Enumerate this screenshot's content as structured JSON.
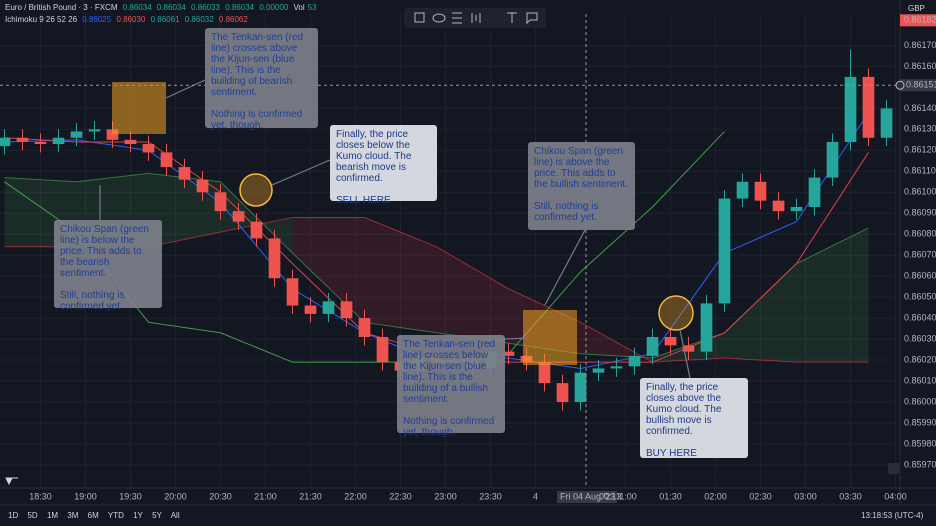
{
  "header": {
    "symbol": "Euro / British Pound · 3 · FXCM",
    "ohlc": [
      "0.86034",
      "0.86034",
      "0.86033",
      "0.86034",
      "0.00000"
    ],
    "vol_label": "Vol",
    "vol": "53",
    "indicator": "Ichimoku 9 26 52 26",
    "indicator_values": [
      "0.86025",
      "0.86030",
      "0.86061",
      "0.86032",
      "0.86062"
    ],
    "currency": "GBP",
    "ranges": [
      "1D",
      "5D",
      "1M",
      "3M",
      "6M",
      "YTD",
      "1Y",
      "5Y",
      "All"
    ],
    "clock": "13:18:53 (UTC-4)"
  },
  "chart_data": {
    "type": "candlestick",
    "x": [
      18.1,
      18.3,
      18.5,
      18.7,
      18.9,
      19.1,
      19.3,
      19.5,
      19.7,
      19.9,
      20.1,
      20.3,
      20.5,
      20.7,
      20.9,
      21.1,
      21.3,
      21.5,
      21.7,
      21.9,
      22.1,
      22.3,
      22.5,
      22.7,
      22.9,
      23.1,
      23.3,
      23.5,
      23.7,
      23.9,
      24.1,
      24.3,
      24.5,
      24.7,
      24.9,
      25.1,
      25.3,
      25.5,
      25.7,
      25.9,
      26.1,
      26.3,
      26.5,
      26.7,
      26.9,
      27.1,
      27.3,
      27.5,
      27.7,
      27.9
    ],
    "open": [
      0.86122,
      0.86126,
      0.86124,
      0.86123,
      0.86126,
      0.86129,
      0.8613,
      0.86125,
      0.86123,
      0.86119,
      0.86112,
      0.86106,
      0.861,
      0.86091,
      0.86086,
      0.86078,
      0.86059,
      0.86046,
      0.86042,
      0.86048,
      0.8604,
      0.86031,
      0.86019,
      0.86015,
      0.86021,
      0.86019,
      0.8602,
      0.86016,
      0.86024,
      0.86022,
      0.86019,
      0.86009,
      0.86,
      0.86014,
      0.86016,
      0.86017,
      0.86022,
      0.86031,
      0.86027,
      0.86024,
      0.86047,
      0.86097,
      0.86105,
      0.86096,
      0.86091,
      0.86093,
      0.86107,
      0.86124,
      0.86155,
      0.86126
    ],
    "high": [
      0.8613,
      0.8613,
      0.86128,
      0.8613,
      0.86133,
      0.86134,
      0.86134,
      0.86129,
      0.86127,
      0.86123,
      0.86116,
      0.8611,
      0.86104,
      0.86095,
      0.8609,
      0.86082,
      0.86063,
      0.8605,
      0.86052,
      0.86052,
      0.86044,
      0.86035,
      0.86023,
      0.86025,
      0.86025,
      0.86024,
      0.86024,
      0.86028,
      0.86028,
      0.86026,
      0.86023,
      0.86013,
      0.86018,
      0.8602,
      0.86021,
      0.86026,
      0.86035,
      0.86035,
      0.86031,
      0.86051,
      0.86101,
      0.86109,
      0.86109,
      0.861,
      0.86097,
      0.86111,
      0.86128,
      0.86168,
      0.86159,
      0.86144
    ],
    "low": [
      0.86118,
      0.8612,
      0.86119,
      0.86119,
      0.86122,
      0.86125,
      0.86121,
      0.86119,
      0.86115,
      0.86108,
      0.86102,
      0.86096,
      0.86087,
      0.86082,
      0.86074,
      0.86055,
      0.86042,
      0.86038,
      0.86038,
      0.86036,
      0.86027,
      0.86015,
      0.86011,
      0.86011,
      0.86015,
      0.86015,
      0.86012,
      0.86012,
      0.86018,
      0.86015,
      0.86005,
      0.85996,
      0.85996,
      0.8601,
      0.86012,
      0.86013,
      0.86018,
      0.86023,
      0.8602,
      0.8602,
      0.86043,
      0.86093,
      0.86092,
      0.86087,
      0.86087,
      0.86089,
      0.86103,
      0.8612,
      0.86122,
      0.86122
    ],
    "close": [
      0.86126,
      0.86124,
      0.86123,
      0.86126,
      0.86129,
      0.8613,
      0.86125,
      0.86123,
      0.86119,
      0.86112,
      0.86106,
      0.861,
      0.86091,
      0.86086,
      0.86078,
      0.86059,
      0.86046,
      0.86042,
      0.86048,
      0.8604,
      0.86031,
      0.86019,
      0.86015,
      0.86021,
      0.86019,
      0.8602,
      0.86016,
      0.86024,
      0.86022,
      0.86019,
      0.86009,
      0.86,
      0.86014,
      0.86016,
      0.86017,
      0.86022,
      0.86031,
      0.86027,
      0.86024,
      0.86047,
      0.86097,
      0.86105,
      0.86096,
      0.86091,
      0.86093,
      0.86107,
      0.86124,
      0.86155,
      0.86126,
      0.8614
    ],
    "up_color": "#26a69a",
    "down_color": "#ef5350",
    "line_x": [
      18.1,
      18.9,
      19.7,
      20.5,
      21.3,
      22.1,
      22.9,
      23.7,
      24.5,
      25.3,
      26.1,
      26.9,
      27.7
    ],
    "lines": [
      {
        "color": "#2962ff",
        "values": [
          0.86124,
          0.86125,
          0.8612,
          0.86095,
          0.86054,
          0.86033,
          0.86019,
          0.86021,
          0.86016,
          0.86023,
          0.86071,
          0.86086,
          0.86138
        ]
      },
      {
        "color": "#e0404a",
        "values": [
          0.86126,
          0.86124,
          0.86124,
          0.861,
          0.86066,
          0.86033,
          0.86023,
          0.86019,
          0.86019,
          0.86019,
          0.86033,
          0.86066,
          0.86119
        ]
      },
      {
        "color": "#43a047",
        "values": [
          0.86105,
          0.86081,
          0.86038,
          0.86033,
          0.86019,
          0.86019,
          0.86019,
          0.86023,
          0.86062,
          0.86093,
          0.86129,
          null,
          null
        ]
      }
    ],
    "cloud": {
      "span_a": [
        0.86107,
        0.86105,
        0.86109,
        0.86105,
        0.86071,
        0.86038,
        0.86033,
        0.86028,
        0.86023,
        0.86021,
        0.86033,
        0.86066,
        0.86083
      ],
      "span_b": [
        0.86074,
        0.86074,
        0.86074,
        0.86081,
        0.86088,
        0.86088,
        0.86074,
        0.86054,
        0.86038,
        0.86019,
        0.86021,
        0.86019,
        0.86019
      ],
      "up_color": "#4caf50",
      "down_color": "#f23645"
    },
    "xlim": [
      18.05,
      28.05
    ],
    "ylim": [
      0.85959,
      0.86185
    ],
    "xticks": [
      {
        "value": 18.5,
        "label": "18:30"
      },
      {
        "value": 19,
        "label": "19:00"
      },
      {
        "value": 19.5,
        "label": "19:30"
      },
      {
        "value": 20,
        "label": "20:00"
      },
      {
        "value": 20.5,
        "label": "20:30"
      },
      {
        "value": 21,
        "label": "21:00"
      },
      {
        "value": 21.5,
        "label": "21:30"
      },
      {
        "value": 22,
        "label": "22:00"
      },
      {
        "value": 22.5,
        "label": "22:30"
      },
      {
        "value": 23,
        "label": "23:00"
      },
      {
        "value": 23.5,
        "label": "23:30"
      },
      {
        "value": 24,
        "label": "4"
      },
      {
        "value": 25,
        "label": "01:00"
      },
      {
        "value": 25.5,
        "label": "01:30"
      },
      {
        "value": 26,
        "label": "02:00"
      },
      {
        "value": 26.5,
        "label": "02:30"
      },
      {
        "value": 27,
        "label": "03:00"
      },
      {
        "value": 27.5,
        "label": "03:30"
      },
      {
        "value": 28,
        "label": "04:00"
      }
    ],
    "yticks": [
      {
        "value": 0.8597,
        "label": "0.85970"
      },
      {
        "value": 0.8598,
        "label": "0.85980"
      },
      {
        "value": 0.8599,
        "label": "0.85990"
      },
      {
        "value": 0.86,
        "label": "0.86000"
      },
      {
        "value": 0.8601,
        "label": "0.86010"
      },
      {
        "value": 0.8602,
        "label": "0.86020"
      },
      {
        "value": 0.8603,
        "label": "0.86030"
      },
      {
        "value": 0.8604,
        "label": "0.86040"
      },
      {
        "value": 0.8605,
        "label": "0.86050"
      },
      {
        "value": 0.8606,
        "label": "0.86060"
      },
      {
        "value": 0.8607,
        "label": "0.86070"
      },
      {
        "value": 0.8608,
        "label": "0.86080"
      },
      {
        "value": 0.8609,
        "label": "0.86090"
      },
      {
        "value": 0.861,
        "label": "0.86100"
      },
      {
        "value": 0.8611,
        "label": "0.86110"
      },
      {
        "value": 0.8612,
        "label": "0.86120"
      },
      {
        "value": 0.8613,
        "label": "0.86130"
      },
      {
        "value": 0.8614,
        "label": "0.86140"
      },
      {
        "value": 0.8616,
        "label": "0.86160"
      },
      {
        "value": 0.8617,
        "label": "0.86170"
      }
    ],
    "grid": true,
    "last_price": 0.86182,
    "crosshair_price": 0.86151,
    "crosshair_date": "Fri 04 Aug '23",
    "crosshair_time": "00:13"
  },
  "annotations": [
    {
      "lines": [
        "The Tenkan-sen (red line) crosses above the Kijun-sen (blue line). This is the building of bearish sentiment.",
        "Nothing is confirmed yet, though."
      ]
    },
    {
      "lines": [
        "Finally, the price closes below the Kumo cloud. The bearish move is confirmed.",
        "SELL HERE"
      ]
    },
    {
      "lines": [
        "Chikou Span (green line) is below the price. This adds to the bearish sentiment.",
        "Still, nothing is confirmed yet."
      ]
    },
    {
      "lines": [
        "Chikou Span (green line) is above the price. This adds to the bullish sentiment.",
        "Still, nothing is confirmed yet."
      ]
    },
    {
      "lines": [
        "The Tenkan-sen (red line) crosses below the Kijun-sen (blue line). This is the building of a bullish sentiment.",
        "Nothing is confirmed yet, though."
      ]
    },
    {
      "lines": [
        "Finally, the price closes above the Kumo cloud. The bullish move is confirmed.",
        "BUY HERE"
      ]
    }
  ]
}
